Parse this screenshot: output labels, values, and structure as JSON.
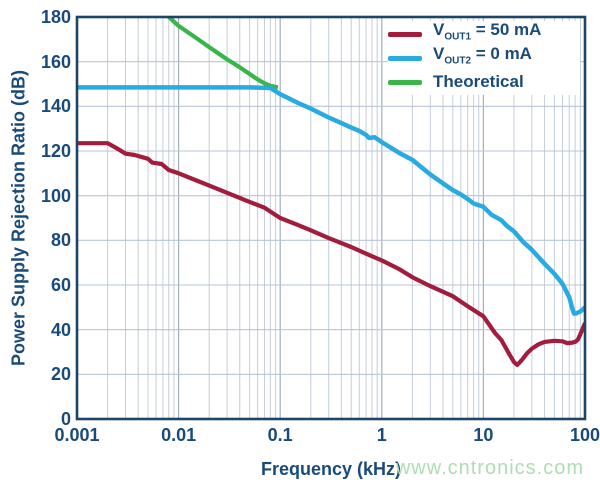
{
  "colors": {
    "series_vout1": "#a21c3d",
    "series_vout2": "#29abe2",
    "series_theoretical": "#39b54a",
    "axis_border": "#1f4566",
    "label_text": "#1a4a7a",
    "grid_minor": "#c4cdda",
    "grid_major": "#9db0c6",
    "grid_horizontal": "#bac5d4",
    "legend_background": "#ffffff",
    "watermark_text": "#afdcb5"
  },
  "watermark": "www.cntronics.com",
  "legend": {
    "items": [
      {
        "prefix": "V",
        "sub": "OUT1",
        "suffix": " = 50 mA"
      },
      {
        "prefix": "V",
        "sub": "OUT2",
        "suffix": " = 0 mA"
      },
      {
        "prefix": "",
        "sub": "",
        "suffix": "Theoretical"
      }
    ]
  },
  "chart_data": {
    "type": "line",
    "title": "",
    "xlabel": "Frequency (kHz)",
    "ylabel": "Power Supply Rejection Ratio (dB)",
    "xscale": "log",
    "xlim": [
      0.001,
      100
    ],
    "ylim": [
      0,
      180
    ],
    "x_ticks": [
      "0.001",
      "0.01",
      "0.1",
      "1",
      "10",
      "100"
    ],
    "y_ticks": [
      0,
      20,
      40,
      60,
      80,
      100,
      120,
      140,
      160,
      180
    ],
    "grid": true,
    "legend_position": "top-right",
    "series": [
      {
        "name": "VOUT1 = 50 mA",
        "color": "#a21c3d",
        "points": [
          [
            0.001,
            123.5
          ],
          [
            0.002,
            123.5
          ],
          [
            0.0024,
            121.5
          ],
          [
            0.003,
            118.8
          ],
          [
            0.0037,
            118.2
          ],
          [
            0.005,
            116.5
          ],
          [
            0.0055,
            114.8
          ],
          [
            0.0068,
            114.2
          ],
          [
            0.008,
            111.5
          ],
          [
            0.01,
            110
          ],
          [
            0.015,
            106.8
          ],
          [
            0.02,
            104.5
          ],
          [
            0.03,
            101.3
          ],
          [
            0.05,
            97.2
          ],
          [
            0.07,
            94.6
          ],
          [
            0.1,
            90
          ],
          [
            0.15,
            86.8
          ],
          [
            0.2,
            84.5
          ],
          [
            0.3,
            81
          ],
          [
            0.5,
            77
          ],
          [
            0.7,
            74
          ],
          [
            1,
            71
          ],
          [
            1.5,
            67
          ],
          [
            2,
            63.5
          ],
          [
            3,
            59.5
          ],
          [
            5,
            55
          ],
          [
            7,
            50.5
          ],
          [
            10,
            46
          ],
          [
            13,
            38.5
          ],
          [
            15,
            35.4
          ],
          [
            18,
            29
          ],
          [
            20,
            25.5
          ],
          [
            21.5,
            24.2
          ],
          [
            24,
            26.5
          ],
          [
            27,
            29.5
          ],
          [
            30,
            31.5
          ],
          [
            35,
            33.5
          ],
          [
            40,
            34.5
          ],
          [
            50,
            35
          ],
          [
            60,
            34.8
          ],
          [
            67,
            34
          ],
          [
            75,
            34.2
          ],
          [
            80,
            34.5
          ],
          [
            85,
            35.5
          ],
          [
            90,
            38
          ],
          [
            95,
            40.5
          ],
          [
            100,
            43
          ]
        ]
      },
      {
        "name": "VOUT2 = 0 mA",
        "color": "#29abe2",
        "points": [
          [
            0.001,
            148.5
          ],
          [
            0.05,
            148.5
          ],
          [
            0.08,
            148.2
          ],
          [
            0.1,
            145.5
          ],
          [
            0.15,
            141.5
          ],
          [
            0.2,
            139
          ],
          [
            0.3,
            135
          ],
          [
            0.4,
            132.5
          ],
          [
            0.5,
            130.5
          ],
          [
            0.6,
            129
          ],
          [
            0.7,
            127.2
          ],
          [
            0.75,
            125.8
          ],
          [
            0.85,
            126.2
          ],
          [
            1,
            124
          ],
          [
            1.5,
            119
          ],
          [
            2,
            116
          ],
          [
            3,
            109.5
          ],
          [
            4,
            105.5
          ],
          [
            5,
            102.5
          ],
          [
            6,
            100.5
          ],
          [
            7,
            98.5
          ],
          [
            8,
            96.5
          ],
          [
            10,
            95
          ],
          [
            12,
            91.5
          ],
          [
            15,
            89
          ],
          [
            17,
            86.5
          ],
          [
            20,
            84
          ],
          [
            25,
            79
          ],
          [
            28,
            77
          ],
          [
            30,
            75.7
          ],
          [
            40,
            69.5
          ],
          [
            50,
            65
          ],
          [
            60,
            60.5
          ],
          [
            70,
            54.5
          ],
          [
            75,
            49.5
          ],
          [
            78,
            47.2
          ],
          [
            82,
            47.3
          ],
          [
            90,
            48.2
          ],
          [
            100,
            50
          ]
        ]
      },
      {
        "name": "Theoretical",
        "color": "#39b54a",
        "points": [
          [
            0.0076,
            181
          ],
          [
            0.01,
            176
          ],
          [
            0.015,
            170.5
          ],
          [
            0.02,
            166.5
          ],
          [
            0.03,
            161
          ],
          [
            0.04,
            157.5
          ],
          [
            0.05,
            154.5
          ],
          [
            0.06,
            152
          ],
          [
            0.07,
            150.3
          ],
          [
            0.08,
            149.2
          ],
          [
            0.095,
            148.5
          ]
        ]
      }
    ]
  }
}
